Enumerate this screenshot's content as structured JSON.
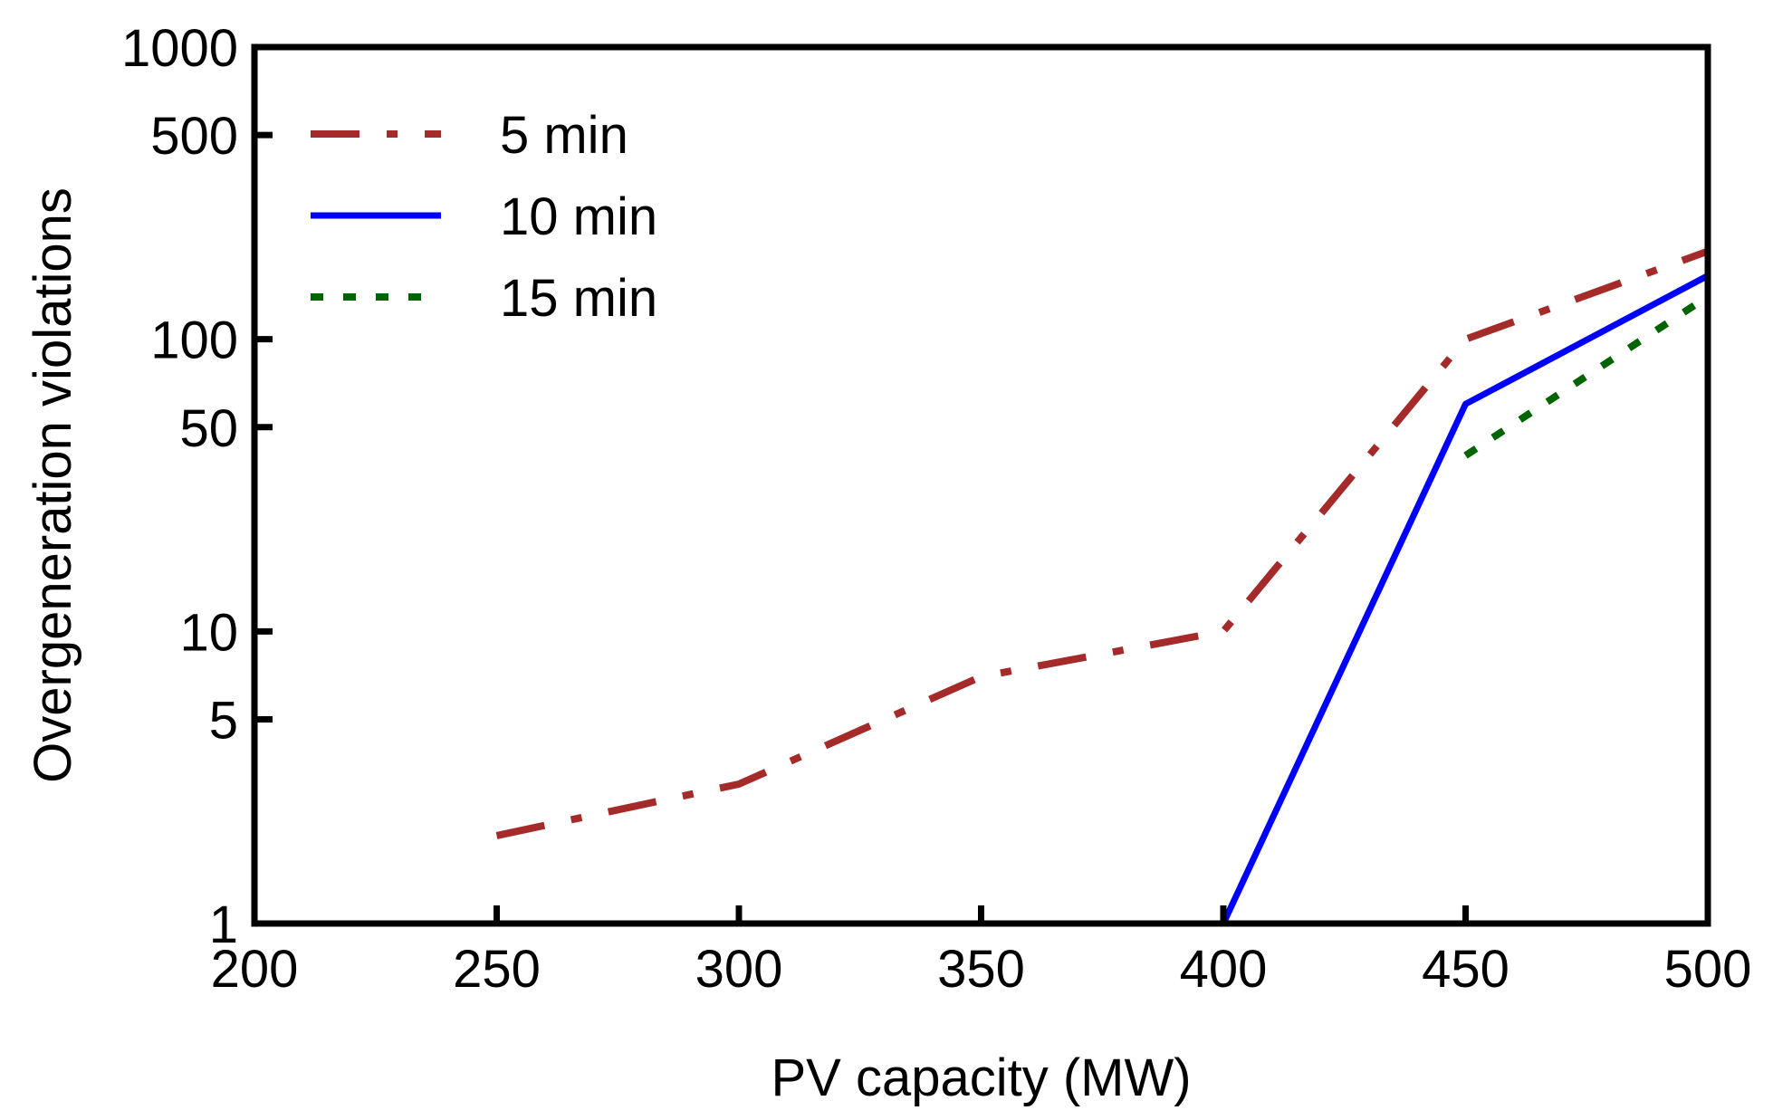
{
  "chart_data": {
    "type": "line",
    "title": "",
    "xlabel": "PV capacity (MW)",
    "ylabel": "Overgeneration violations",
    "xlim": [
      200,
      500
    ],
    "ylim": [
      1,
      1000
    ],
    "yscale": "log",
    "grid": false,
    "legend_position": "top-left",
    "x_ticks": [
      200,
      250,
      300,
      350,
      400,
      450,
      500
    ],
    "x_tick_labels": [
      "200",
      "250",
      "300",
      "350",
      "400",
      "450",
      "500"
    ],
    "y_ticks": [
      1,
      5,
      10,
      50,
      100,
      500,
      1000
    ],
    "y_tick_labels": [
      "1",
      "5",
      "10",
      "50",
      "100",
      "500",
      "1000"
    ],
    "series": [
      {
        "name": "5 min",
        "color": "#a52a2a",
        "style": "dashdot",
        "x": [
          250,
          300,
          350,
          400,
          450,
          500
        ],
        "y": [
          2,
          3,
          7,
          10,
          100,
          200
        ]
      },
      {
        "name": "10 min",
        "color": "#0000ff",
        "style": "solid",
        "x": [
          400,
          450,
          500
        ],
        "y": [
          1,
          60,
          165
        ]
      },
      {
        "name": "15 min",
        "color": "#006400",
        "style": "dotted",
        "x": [
          450,
          500
        ],
        "y": [
          40,
          140
        ]
      }
    ]
  }
}
